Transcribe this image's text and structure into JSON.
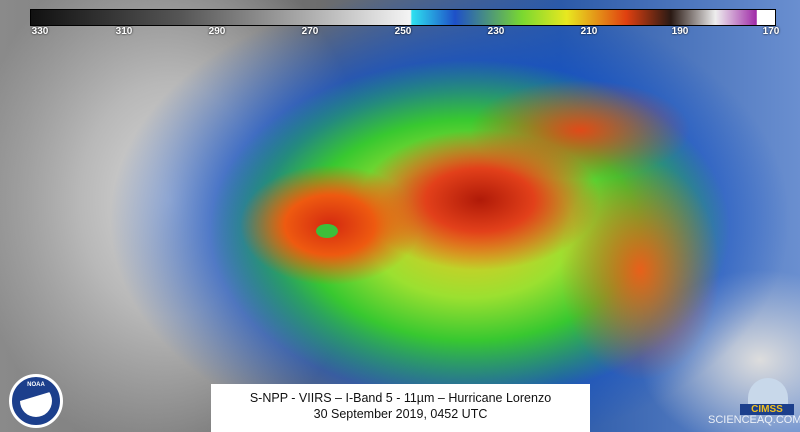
{
  "colorbar": {
    "ticks": [
      "330",
      "310",
      "290",
      "270",
      "250",
      "230",
      "210",
      "190",
      "170"
    ]
  },
  "caption": {
    "line1": "S-NPP - VIIRS – I-Band 5 - 11µm – Hurricane Lorenzo",
    "line2": "30 September 2019, 0452 UTC"
  },
  "logos": {
    "left": "NOAA",
    "right": "CIMSS"
  },
  "watermark": "SCIENCEAQ.COM"
}
